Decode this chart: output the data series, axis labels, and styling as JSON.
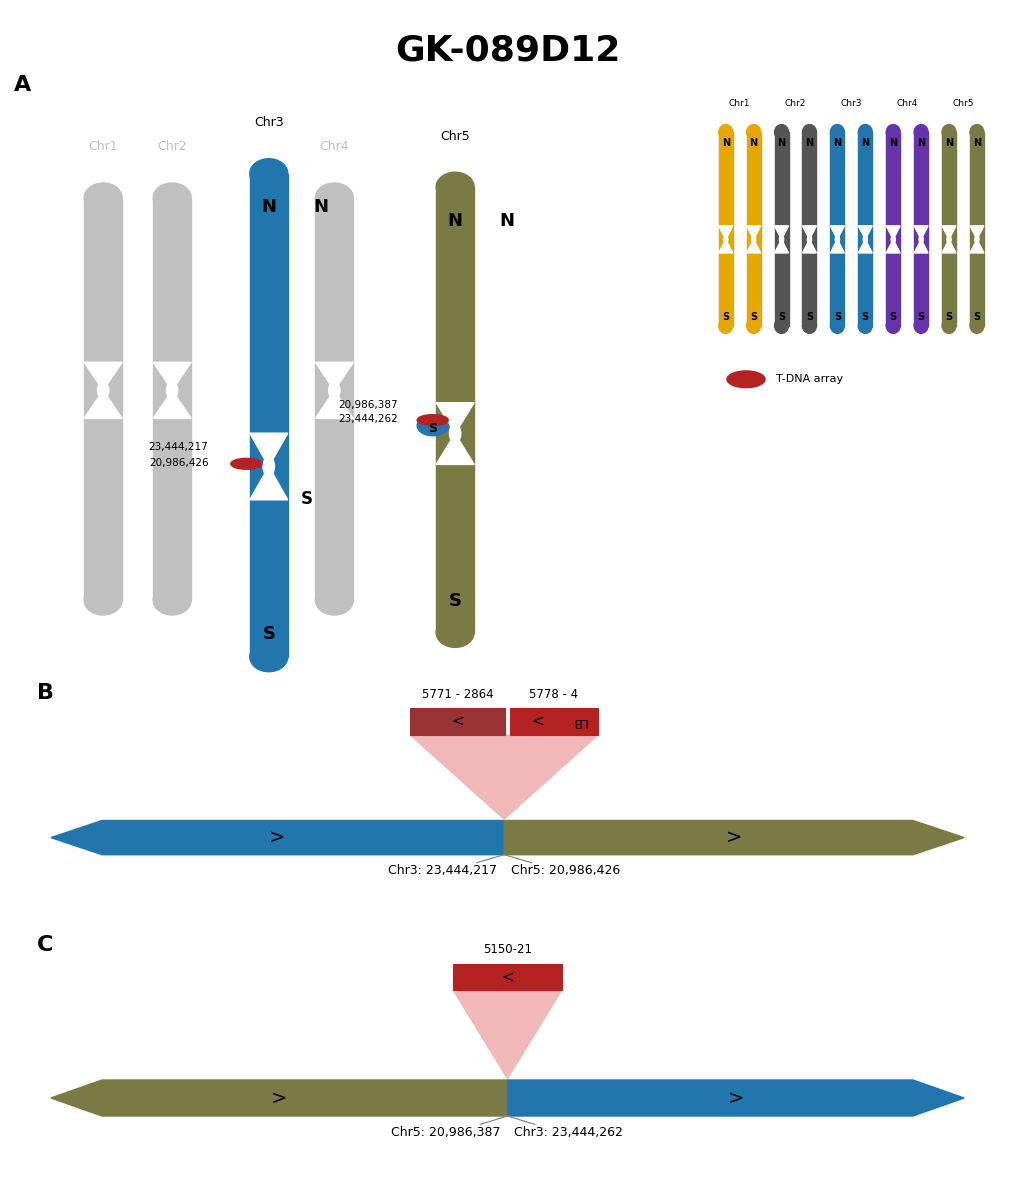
{
  "title": "GK-089D12",
  "title_fontsize": 26,
  "chr_colors": {
    "Chr1": "#c0c0c0",
    "Chr2": "#c0c0c0",
    "Chr3": "#2176ae",
    "Chr4": "#c0c0c0",
    "Chr5": "#7a7a45"
  },
  "chr_colors_small": {
    "Chr1": "#e6a800",
    "Chr2": "#555555",
    "Chr3": "#2176ae",
    "Chr4": "#6633aa",
    "Chr5": "#7a7a45"
  },
  "gray": "#c0c0c0",
  "blue": "#2176ae",
  "olive": "#7a7a45",
  "tdna_red": "#b52222",
  "tdna_pink": "#f0b8b8",
  "panel_B_label1": "5771 - 2864",
  "panel_B_label2": "5778 - 4",
  "panel_B_chr3_pos": "Chr3: 23,444,217",
  "panel_B_chr5_pos": "Chr5: 20,986,426",
  "panel_C_label": "5150-21",
  "panel_C_chr5_pos": "Chr5: 20,986,387",
  "panel_C_chr3_pos": "Chr3: 23,444,262",
  "background_color": "#ffffff"
}
